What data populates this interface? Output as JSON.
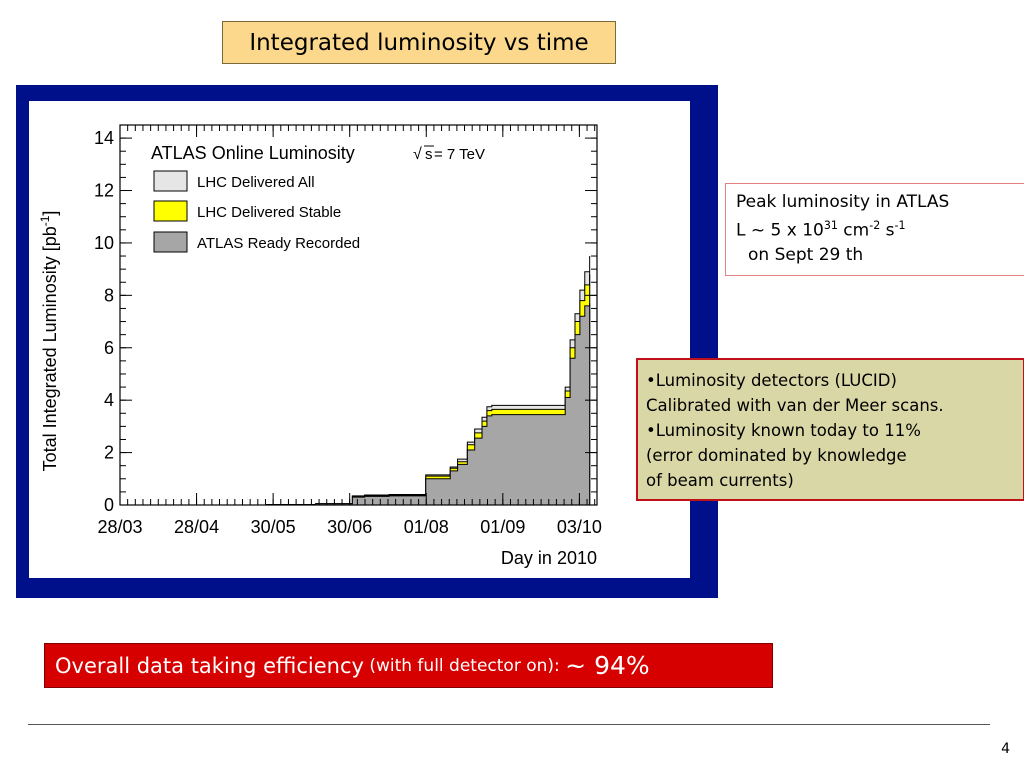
{
  "slide": {
    "title": "Integrated luminosity vs time",
    "page_number": "4",
    "peak": {
      "line1": "Peak luminosity in ATLAS",
      "line2_prefix": "L ~ 5 x 10",
      "line2_exp1": "31",
      "line2_unit1": " cm",
      "line2_exp2": "-2",
      "line2_unit2": " s",
      "line2_exp3": "-1",
      "line3": "on Sept 29 th"
    },
    "notes": [
      "•Luminosity detectors (LUCID)",
      "Calibrated with van der Meer scans.",
      "•Luminosity known today to 11%",
      "(error dominated by knowledge",
      "of beam currents)"
    ],
    "efficiency": {
      "main": "Overall data taking efficiency",
      "paren": " (with full detector on): ",
      "value": "~ 94%"
    }
  },
  "chart_data": {
    "type": "area",
    "title": "ATLAS Online Luminosity",
    "energy_label_root": "s",
    "energy_label_rest": " = 7 TeV",
    "xlabel": "Day in 2010",
    "ylabel": "Total Integrated Luminosity [pb",
    "ylabel_exp": "-1",
    "ylabel_close": "]",
    "xticks": [
      "28/03",
      "28/04",
      "30/05",
      "30/06",
      "01/08",
      "01/09",
      "03/10"
    ],
    "yticks": [
      "0",
      "2",
      "4",
      "6",
      "8",
      "10",
      "12",
      "14"
    ],
    "xlim": [
      0,
      195
    ],
    "ylim": [
      0,
      14.5
    ],
    "legend_position": "top-left",
    "colors": {
      "delivered_all": "#e6e6e6",
      "delivered_stable": "#ffff00",
      "recorded": "#a6a6a6",
      "frame": "#000f8a"
    },
    "series": [
      {
        "name": "LHC Delivered All",
        "x": [
          0,
          60,
          80,
          95,
          100,
          110,
          125,
          135,
          138,
          142,
          145,
          148,
          150,
          152,
          154,
          156,
          158,
          162,
          180,
          182,
          184,
          186,
          188,
          190,
          192
        ],
        "y": [
          0,
          0.02,
          0.05,
          0.35,
          0.38,
          0.4,
          1.15,
          1.45,
          1.75,
          2.4,
          2.9,
          3.35,
          3.75,
          3.8,
          3.8,
          3.8,
          3.8,
          3.8,
          3.8,
          4.5,
          6.3,
          7.3,
          8.2,
          8.9,
          9.5
        ]
      },
      {
        "name": "LHC Delivered Stable",
        "x": [
          0,
          60,
          80,
          95,
          100,
          110,
          125,
          135,
          138,
          142,
          145,
          148,
          150,
          152,
          154,
          156,
          158,
          162,
          180,
          182,
          184,
          186,
          188,
          190,
          192
        ],
        "y": [
          0,
          0.02,
          0.05,
          0.33,
          0.36,
          0.38,
          1.1,
          1.4,
          1.65,
          2.3,
          2.75,
          3.2,
          3.6,
          3.65,
          3.65,
          3.65,
          3.65,
          3.65,
          3.65,
          4.35,
          6.0,
          7.0,
          7.8,
          8.4,
          8.8
        ]
      },
      {
        "name": "ATLAS Ready Recorded",
        "x": [
          0,
          60,
          80,
          95,
          100,
          110,
          125,
          135,
          138,
          142,
          145,
          148,
          150,
          152,
          154,
          156,
          158,
          162,
          180,
          182,
          184,
          186,
          188,
          190,
          192
        ],
        "y": [
          0,
          0.02,
          0.05,
          0.3,
          0.33,
          0.35,
          1.0,
          1.3,
          1.55,
          2.1,
          2.55,
          3.0,
          3.4,
          3.45,
          3.45,
          3.45,
          3.45,
          3.45,
          3.45,
          4.1,
          5.6,
          6.5,
          7.2,
          7.6,
          7.7
        ]
      }
    ]
  }
}
